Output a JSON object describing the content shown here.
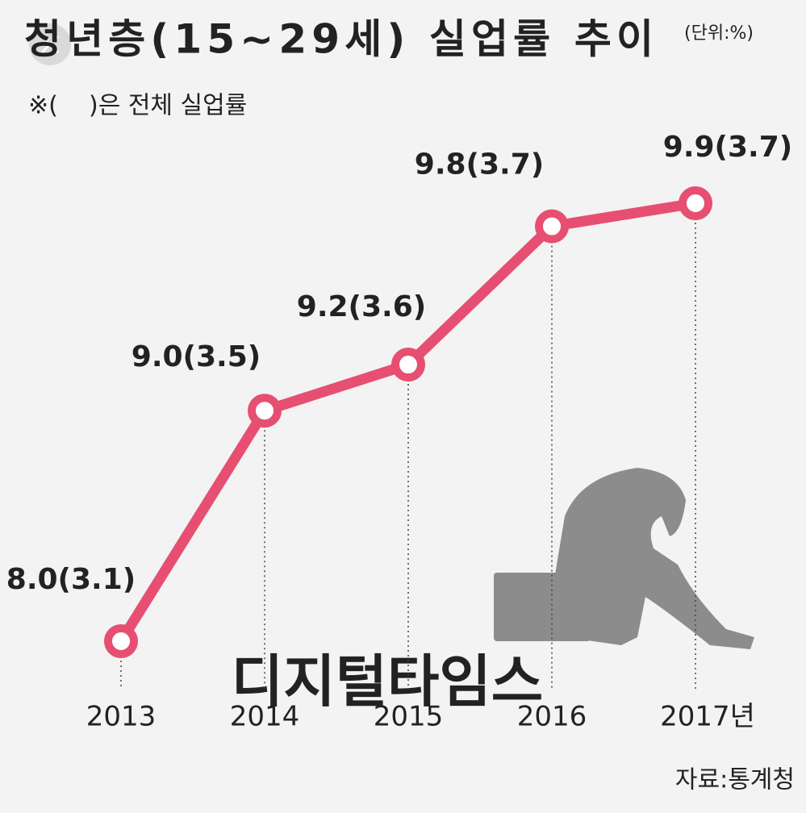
{
  "chart_data": {
    "type": "line",
    "title": "청년층(15~29세) 실업률 추이",
    "unit": "(단위:%)",
    "note": "※(    )은 전체 실업률",
    "source": "자료:통계청",
    "watermark": "디지털타임스",
    "categories": [
      "2013",
      "2014",
      "2015",
      "2016",
      "2017년"
    ],
    "values": [
      8.0,
      9.0,
      9.2,
      9.8,
      9.9
    ],
    "value_labels": [
      "8.0(3.1)",
      "9.0(3.5)",
      "9.2(3.6)",
      "9.8(3.7)",
      "9.9(3.7)"
    ],
    "color": "#e64f72"
  }
}
